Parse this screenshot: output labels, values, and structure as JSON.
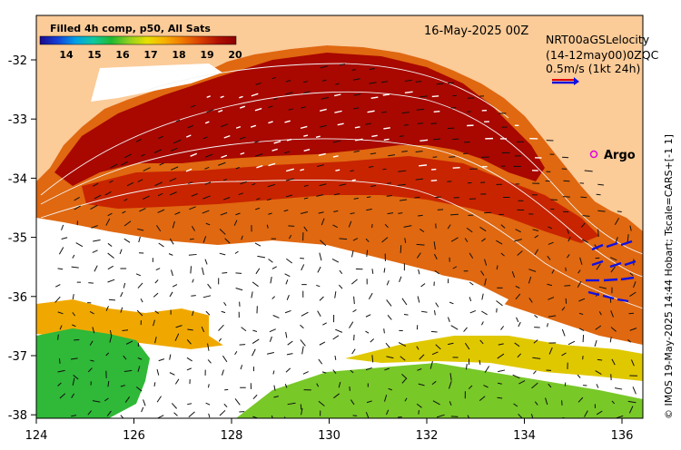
{
  "colorbar": {
    "title": "Filled 4h comp, p50, All Sats",
    "ticks": [
      "14",
      "15",
      "16",
      "17",
      "18",
      "19",
      "20"
    ],
    "stops": [
      "#1a0a8c",
      "#1440d8",
      "#00a0e8",
      "#10c8a0",
      "#20b830",
      "#90d020",
      "#e8e000",
      "#f8b000",
      "#f07800",
      "#d84000",
      "#b01000",
      "#8c0000"
    ]
  },
  "date_label": "16-May-2025 00Z",
  "overlays": {
    "line1": "NRT00aGSLelocity",
    "line2": "(14-12may00)0ZQC",
    "scale_label": "0.5m/s (1kt 24h)"
  },
  "argo": {
    "label": "Argo",
    "marker_color": "#e000e0"
  },
  "credit": "© IMOS 19-May-2025 14:44 Hobart; Tscale=CARS+[-1 1]",
  "axes": {
    "x_ticks": [
      "124",
      "126",
      "128",
      "130",
      "132",
      "134",
      "136"
    ],
    "y_ticks": [
      "-32",
      "-33",
      "-34",
      "-35",
      "-36",
      "-37",
      "-38"
    ]
  },
  "colors": {
    "land": "#fbcb98",
    "arrow_blue": "#1010e0",
    "arrow_red": "#e00000"
  }
}
